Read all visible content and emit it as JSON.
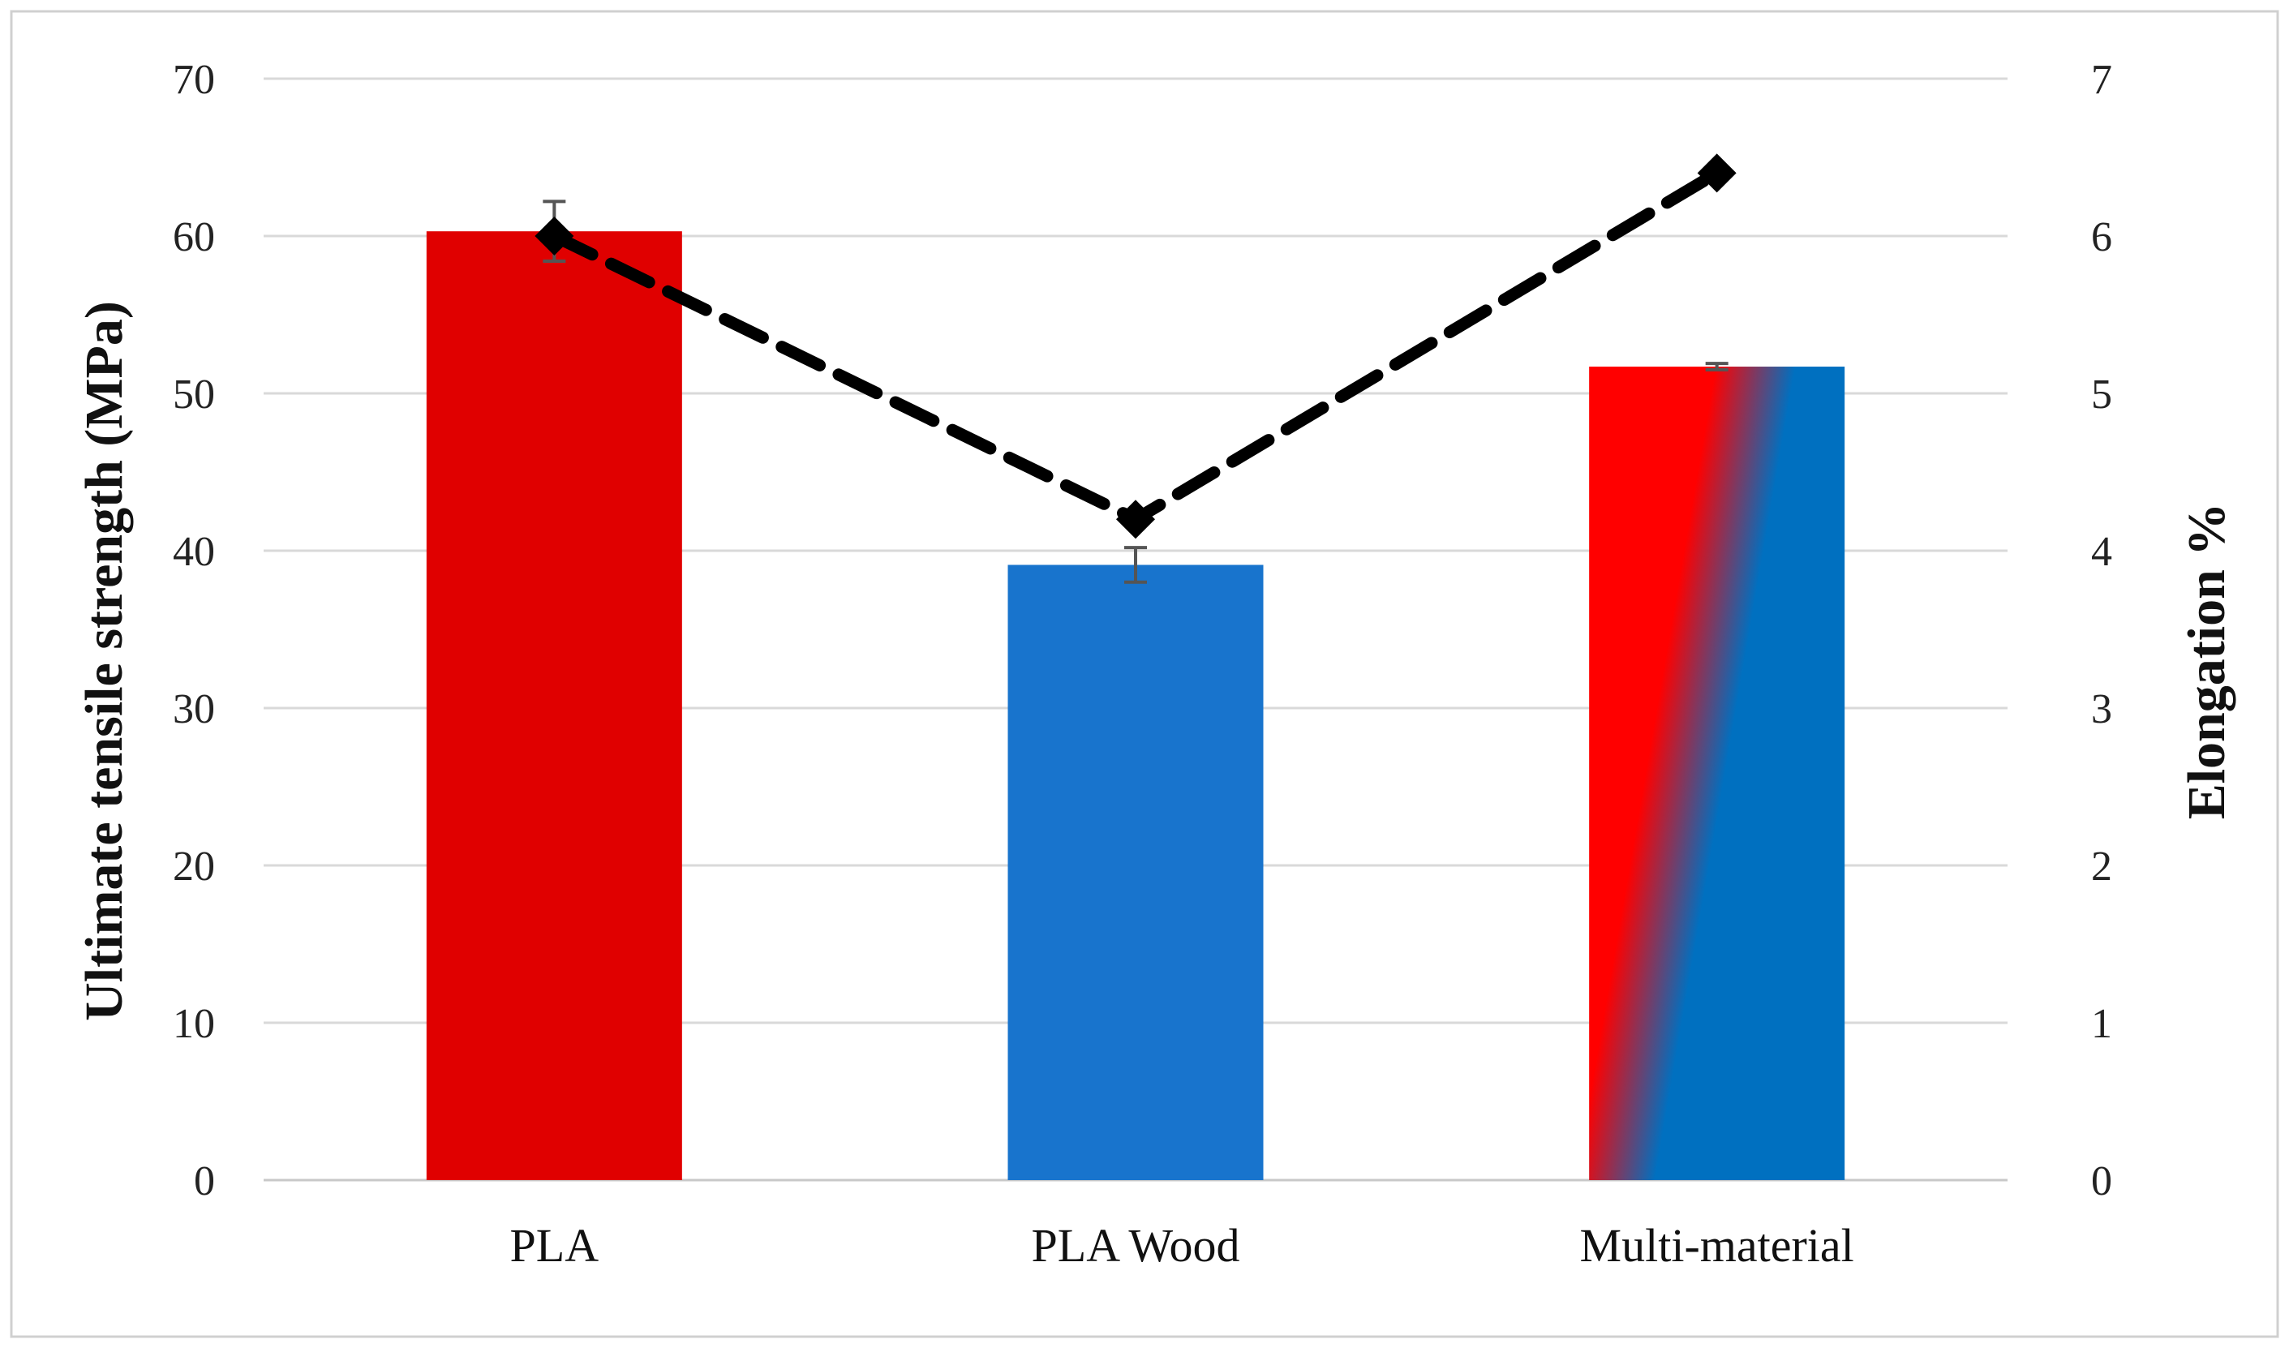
{
  "chart_data": {
    "type": "bar",
    "title": "",
    "categories": [
      "PLA",
      "PLA Wood",
      "Multi-material"
    ],
    "series": [
      {
        "type": "bar",
        "axis": "left",
        "values": [
          60.3,
          39.1,
          51.7
        ],
        "error": [
          1.9,
          1.1,
          0.2
        ],
        "colors": [
          "#e00000",
          "#1874cd",
          "gradient"
        ]
      },
      {
        "type": "line",
        "axis": "right",
        "style": "dashed",
        "marker": "diamond",
        "color": "#000000",
        "values": [
          6.0,
          4.2,
          6.4
        ]
      }
    ],
    "ylabel": "Ultimate tensile strength (MPa)",
    "ylabel_right": "Elongation %",
    "ylim": [
      0,
      70
    ],
    "ylim_right": [
      0,
      7
    ],
    "yticks": [
      "0",
      "10",
      "20",
      "30",
      "40",
      "50",
      "60",
      "70"
    ],
    "yticks_right": [
      "0",
      "1",
      "2",
      "3",
      "4",
      "5",
      "6",
      "7"
    ],
    "grid": true,
    "gradient_colors": [
      "#ff0000",
      "#0070c0"
    ]
  }
}
